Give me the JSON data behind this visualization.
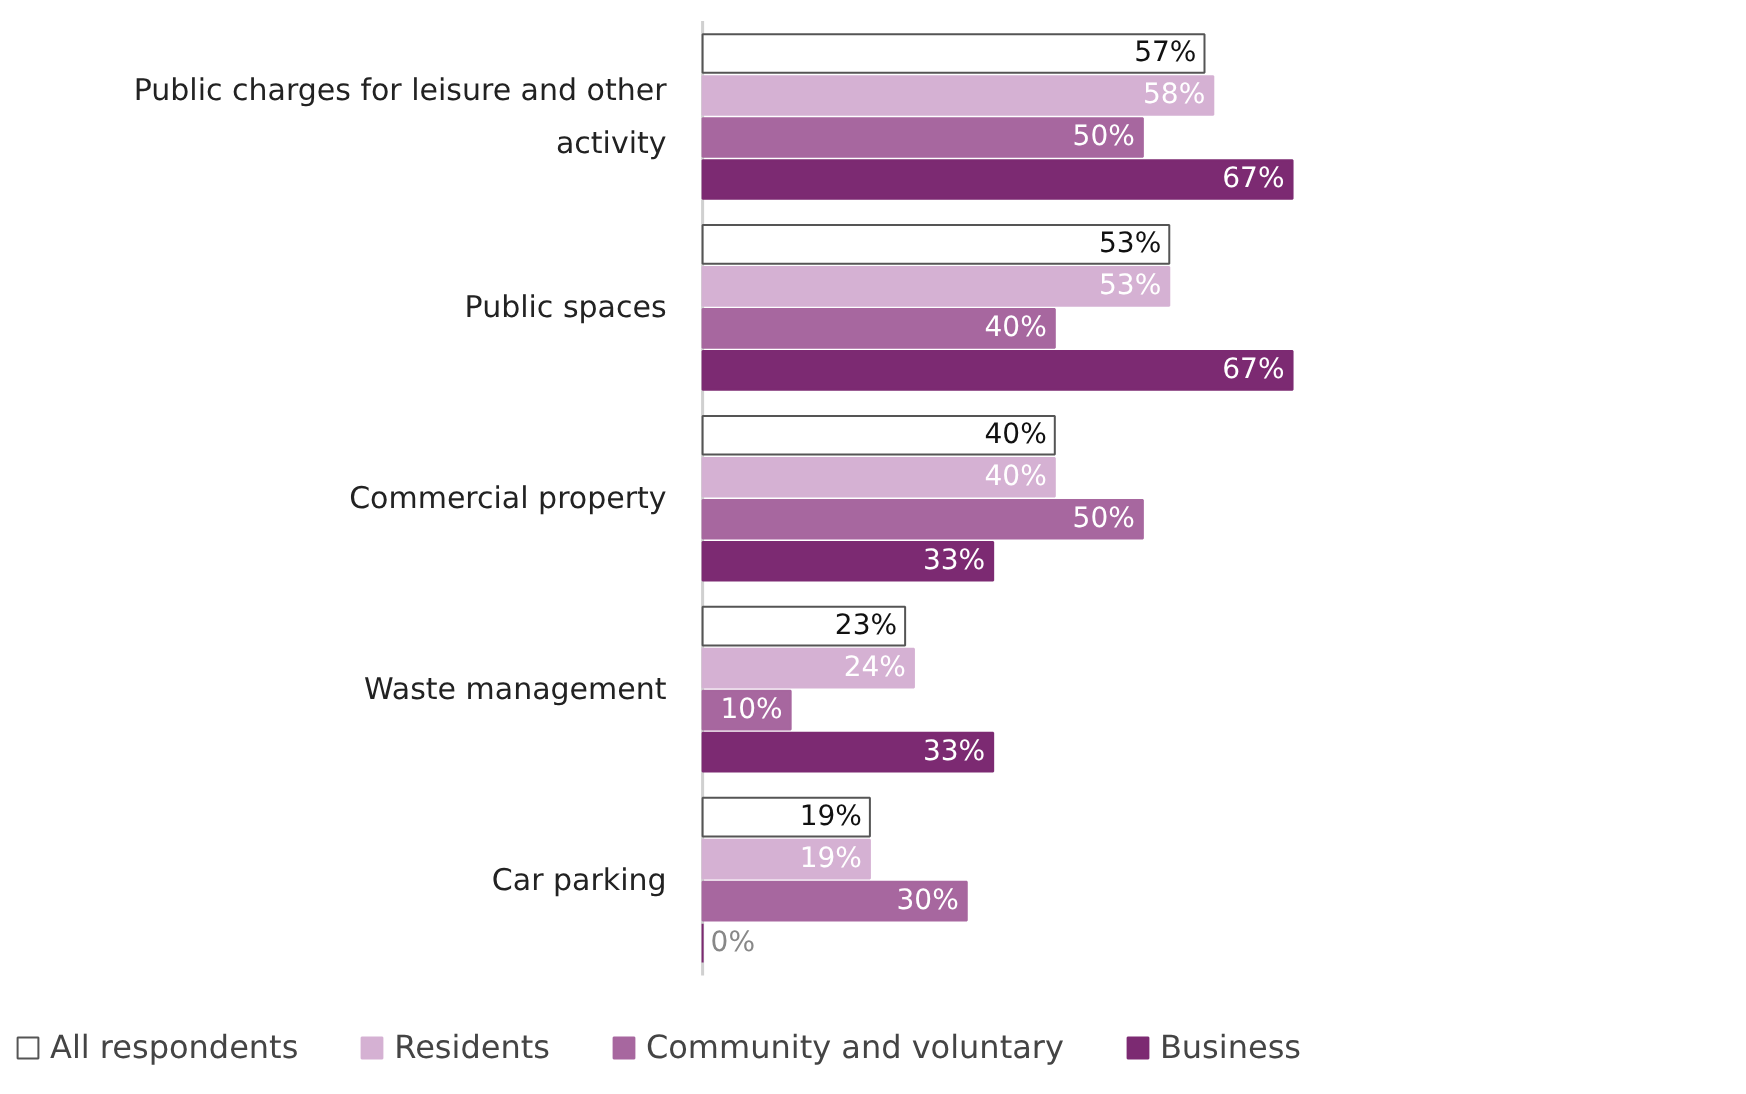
{
  "chart_data": {
    "type": "bar",
    "orientation": "horizontal",
    "categories": [
      "Public charges for leisure and other activity",
      "Public spaces",
      "Commercial property",
      "Waste management",
      "Car parking"
    ],
    "series": [
      {
        "name": "All respondents",
        "color": "#ffffff",
        "values": [
          57,
          53,
          40,
          23,
          19
        ],
        "value_labels": [
          "57%",
          "53%",
          "40%",
          "23%",
          "19%"
        ]
      },
      {
        "name": "Residents",
        "color": "#d5b1d3",
        "values": [
          58,
          53,
          40,
          24,
          19
        ],
        "value_labels": [
          "58%",
          "53%",
          "40%",
          "24%",
          "19%"
        ]
      },
      {
        "name": "Community and voluntary",
        "color": "#a7679f",
        "values": [
          50,
          40,
          50,
          10,
          30
        ],
        "value_labels": [
          "50%",
          "40%",
          "50%",
          "10%",
          "30%"
        ]
      },
      {
        "name": "Business",
        "color": "#7c2a72",
        "values": [
          67,
          67,
          33,
          33,
          0
        ],
        "value_labels": [
          "67%",
          "67%",
          "33%",
          "33%",
          "0%"
        ]
      }
    ],
    "tick_labels": "y",
    "legend": "bottom"
  }
}
